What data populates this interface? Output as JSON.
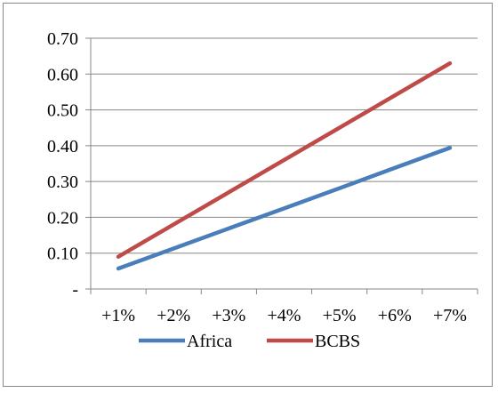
{
  "chart_data": {
    "type": "line",
    "categories": [
      "+1%",
      "+2%",
      "+3%",
      "+4%",
      "+5%",
      "+6%",
      "+7%"
    ],
    "series": [
      {
        "name": "Africa",
        "color": "#4a7ebb",
        "values": [
          0.057,
          0.113,
          0.169,
          0.225,
          0.281,
          0.338,
          0.394
        ]
      },
      {
        "name": "BCBS",
        "color": "#be4b48",
        "values": [
          0.09,
          0.18,
          0.27,
          0.36,
          0.45,
          0.54,
          0.63
        ]
      }
    ],
    "y_ticks": [
      {
        "value": 0.0,
        "label": "-"
      },
      {
        "value": 0.1,
        "label": "0.10"
      },
      {
        "value": 0.2,
        "label": "0.20"
      },
      {
        "value": 0.3,
        "label": "0.30"
      },
      {
        "value": 0.4,
        "label": "0.40"
      },
      {
        "value": 0.5,
        "label": "0.50"
      },
      {
        "value": 0.6,
        "label": "0.60"
      },
      {
        "value": 0.7,
        "label": "0.70"
      }
    ],
    "ylim": [
      0,
      0.7
    ],
    "grid": true,
    "legend_position": "bottom",
    "gridline_color": "#878787"
  }
}
